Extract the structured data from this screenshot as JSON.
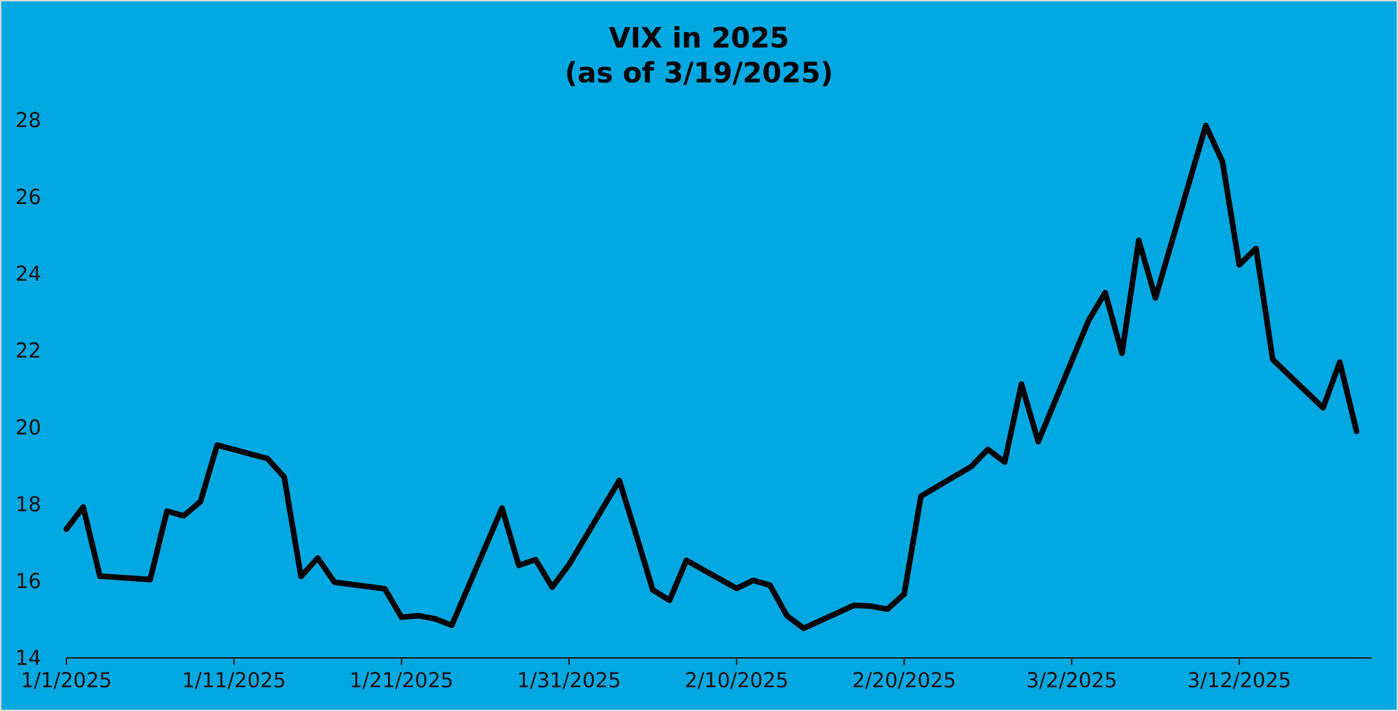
{
  "chart_data": {
    "type": "line",
    "title": "VIX in 2025",
    "subtitle": "(as of 3/19/2025)",
    "xlabel": "",
    "ylabel": "",
    "ylim": [
      14,
      28
    ],
    "y_ticks": [
      14,
      16,
      18,
      20,
      22,
      24,
      26,
      28
    ],
    "x_start": "1/1/2025",
    "x_end": "3/19/2025",
    "x_ticks": [
      "1/1/2025",
      "1/11/2025",
      "1/21/2025",
      "1/31/2025",
      "2/10/2025",
      "2/20/2025",
      "3/2/2025",
      "3/12/2025"
    ],
    "grid": false,
    "legend": "none",
    "line_color": "#000000",
    "background_color": "#00a8e1",
    "series": [
      {
        "points": [
          [
            "1/1/2025",
            17.35
          ],
          [
            "1/2/2025",
            17.93
          ],
          [
            "1/3/2025",
            16.13
          ],
          [
            "1/6/2025",
            16.04
          ],
          [
            "1/7/2025",
            17.82
          ],
          [
            "1/8/2025",
            17.7
          ],
          [
            "1/9/2025",
            18.07
          ],
          [
            "1/10/2025",
            19.54
          ],
          [
            "1/13/2025",
            19.19
          ],
          [
            "1/14/2025",
            18.71
          ],
          [
            "1/15/2025",
            16.12
          ],
          [
            "1/16/2025",
            16.6
          ],
          [
            "1/17/2025",
            15.97
          ],
          [
            "1/20/2025",
            15.8
          ],
          [
            "1/21/2025",
            15.06
          ],
          [
            "1/22/2025",
            15.1
          ],
          [
            "1/23/2025",
            15.02
          ],
          [
            "1/24/2025",
            14.85
          ],
          [
            "1/27/2025",
            17.9
          ],
          [
            "1/28/2025",
            16.41
          ],
          [
            "1/29/2025",
            16.56
          ],
          [
            "1/30/2025",
            15.84
          ],
          [
            "1/31/2025",
            16.43
          ],
          [
            "2/3/2025",
            18.62
          ],
          [
            "2/4/2025",
            17.21
          ],
          [
            "2/5/2025",
            15.77
          ],
          [
            "2/6/2025",
            15.5
          ],
          [
            "2/7/2025",
            16.54
          ],
          [
            "2/10/2025",
            15.81
          ],
          [
            "2/11/2025",
            16.02
          ],
          [
            "2/12/2025",
            15.89
          ],
          [
            "2/13/2025",
            15.1
          ],
          [
            "2/14/2025",
            14.77
          ],
          [
            "2/17/2025",
            15.37
          ],
          [
            "2/18/2025",
            15.35
          ],
          [
            "2/19/2025",
            15.27
          ],
          [
            "2/20/2025",
            15.66
          ],
          [
            "2/21/2025",
            18.21
          ],
          [
            "2/24/2025",
            18.98
          ],
          [
            "2/25/2025",
            19.43
          ],
          [
            "2/26/2025",
            19.1
          ],
          [
            "2/27/2025",
            21.13
          ],
          [
            "2/28/2025",
            19.63
          ],
          [
            "3/3/2025",
            22.78
          ],
          [
            "3/4/2025",
            23.51
          ],
          [
            "3/5/2025",
            21.93
          ],
          [
            "3/6/2025",
            24.87
          ],
          [
            "3/7/2025",
            23.37
          ],
          [
            "3/10/2025",
            27.86
          ],
          [
            "3/11/2025",
            26.92
          ],
          [
            "3/12/2025",
            24.23
          ],
          [
            "3/13/2025",
            24.66
          ],
          [
            "3/14/2025",
            21.77
          ],
          [
            "3/17/2025",
            20.51
          ],
          [
            "3/18/2025",
            21.7
          ],
          [
            "3/19/2025",
            19.9
          ]
        ]
      }
    ]
  }
}
